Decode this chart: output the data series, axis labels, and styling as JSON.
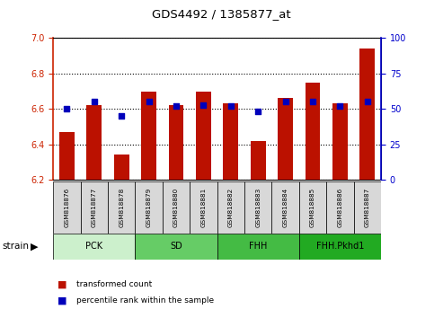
{
  "title": "GDS4492 / 1385877_at",
  "samples": [
    "GSM818876",
    "GSM818877",
    "GSM818878",
    "GSM818879",
    "GSM818880",
    "GSM818881",
    "GSM818882",
    "GSM818883",
    "GSM818884",
    "GSM818885",
    "GSM818886",
    "GSM818887"
  ],
  "transformed_count": [
    6.47,
    6.62,
    6.34,
    6.7,
    6.62,
    6.7,
    6.63,
    6.42,
    6.66,
    6.75,
    6.63,
    6.94
  ],
  "percentile_rank": [
    50,
    55,
    45,
    55,
    52,
    53,
    52,
    48,
    55,
    55,
    52,
    55
  ],
  "groups": [
    {
      "label": "PCK",
      "start": 0,
      "end": 3,
      "color": "#ccf0cc"
    },
    {
      "label": "SD",
      "start": 3,
      "end": 6,
      "color": "#66cc66"
    },
    {
      "label": "FHH",
      "start": 6,
      "end": 9,
      "color": "#44bb44"
    },
    {
      "label": "FHH.Pkhd1",
      "start": 9,
      "end": 12,
      "color": "#22aa22"
    }
  ],
  "ylim_left": [
    6.2,
    7.0
  ],
  "ylim_right": [
    0,
    100
  ],
  "bar_color": "#bb1100",
  "dot_color": "#0000bb",
  "yticks_left": [
    6.2,
    6.4,
    6.6,
    6.8,
    7.0
  ],
  "yticks_right": [
    0,
    25,
    50,
    75,
    100
  ],
  "left_axis_color": "#cc2200",
  "right_axis_color": "#0000cc",
  "legend_bar_label": "transformed count",
  "legend_dot_label": "percentile rank within the sample",
  "strain_label": "strain"
}
